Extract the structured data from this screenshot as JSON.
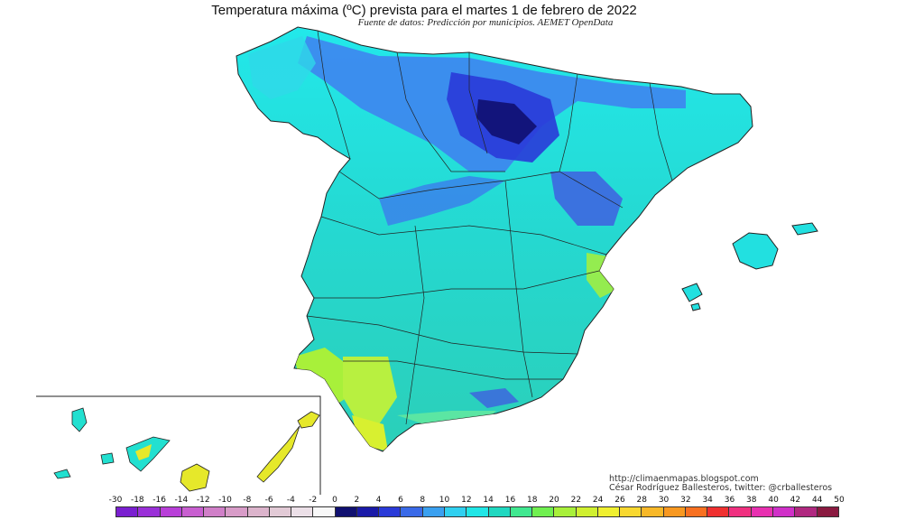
{
  "title": "Temperatura máxima (ºC) prevista para el martes 1 de febrero de 2022",
  "subtitle": "Fuente de datos: Predicción por municipios. AEMET OpenData",
  "credits": {
    "url": "http://climaenmapas.blogspot.com",
    "author": "César Rodríguez Ballesteros, twitter: @crballesteros"
  },
  "colors": {
    "cold": "#3f3fd8",
    "deep_cold": "#1010a0",
    "cool": "#5a8ff0",
    "mild": "#22e0e0",
    "warm_mild": "#2fd6c4",
    "warm": "#a8f03a",
    "warmer": "#e6e82a",
    "border": "#222222"
  },
  "scale": {
    "ticks": [
      "-30",
      "-18",
      "-16",
      "-14",
      "-12",
      "-10",
      "-8",
      "-6",
      "-4",
      "-2",
      "0",
      "2",
      "4",
      "6",
      "8",
      "10",
      "12",
      "14",
      "16",
      "18",
      "20",
      "22",
      "24",
      "26",
      "28",
      "30",
      "32",
      "34",
      "36",
      "38",
      "40",
      "42",
      "44",
      "50"
    ],
    "colors": [
      "#7a1fd0",
      "#9a30d8",
      "#b83fd8",
      "#c85fd0",
      "#d07fc8",
      "#d89cc8",
      "#dcb4cc",
      "#e2cad6",
      "#ece0e8",
      "#f8f8f8",
      "#101070",
      "#1a1aa8",
      "#2a3ad8",
      "#3a6ae8",
      "#3aa0f0",
      "#30d0f0",
      "#20e6e6",
      "#20d8c0",
      "#40e890",
      "#70f050",
      "#a8f03a",
      "#d0f030",
      "#f0f030",
      "#f8d830",
      "#f8b828",
      "#f89820",
      "#f87020",
      "#f03030",
      "#f03080",
      "#e830b0",
      "#d030c8",
      "#b02880",
      "#8a1a40"
    ]
  },
  "chart_data": {
    "type": "heatmap",
    "title": "Temperatura máxima (ºC) prevista para el martes 1 de febrero de 2022",
    "subtitle": "Fuente de datos: Predicción por municipios. AEMET OpenData",
    "legend_placement": "bottom",
    "unit": "ºC",
    "bins": [
      "-30",
      "-18",
      "-16",
      "-14",
      "-12",
      "-10",
      "-8",
      "-6",
      "-4",
      "-2",
      "0",
      "2",
      "4",
      "6",
      "8",
      "10",
      "12",
      "14",
      "16",
      "18",
      "20",
      "22",
      "24",
      "26",
      "28",
      "30",
      "32",
      "34",
      "36",
      "38",
      "40",
      "42",
      "44",
      "50"
    ]
  }
}
